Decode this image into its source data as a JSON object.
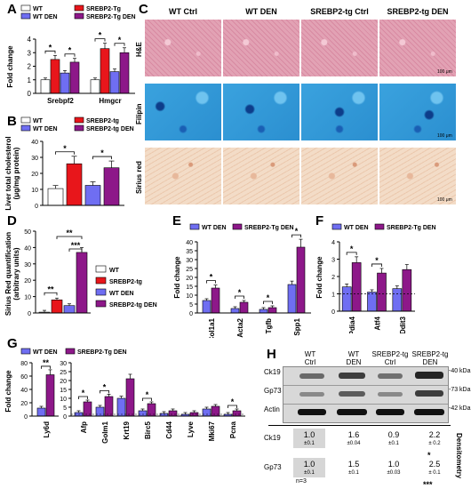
{
  "panel_letters": [
    "A",
    "B",
    "C",
    "D",
    "E",
    "F",
    "G",
    "H"
  ],
  "colors": {
    "wt": "#ffffff",
    "srebp2tg": "#e8161b",
    "wtden": "#6f6ef2",
    "tgden": "#8d1889",
    "he": "#e2a2b4",
    "filipin": "#2b8fd0",
    "sirius": "#f3dcc7"
  },
  "chart_data": [
    {
      "id": "A",
      "type": "bar",
      "legend": [
        "WT",
        "SREBP2-Tg",
        "WT DEN",
        "SREBP2-Tg DEN"
      ],
      "categories": [
        "Srebpf2",
        "Hmgcr"
      ],
      "series": [
        {
          "name": "WT",
          "values": [
            1.0,
            1.0
          ]
        },
        {
          "name": "SREBP2-Tg",
          "values": [
            2.5,
            3.3
          ]
        },
        {
          "name": "WT DEN",
          "values": [
            1.5,
            1.6
          ]
        },
        {
          "name": "SREBP2-Tg DEN",
          "values": [
            2.3,
            3.0
          ]
        }
      ],
      "ylabel": "Fold change",
      "yticks": [
        0,
        1,
        2,
        3,
        4
      ],
      "ylim": [
        0,
        4
      ],
      "annotations": [
        "*",
        "*",
        "*",
        "*"
      ]
    },
    {
      "id": "B",
      "type": "bar",
      "legend": [
        "WT",
        "SREBP2-tg",
        "WT DEN",
        "SREBP2-tg DEN"
      ],
      "categories": [
        ""
      ],
      "series": [
        {
          "name": "WT",
          "values": [
            10.5
          ]
        },
        {
          "name": "SREBP2-tg",
          "values": [
            26
          ]
        },
        {
          "name": "WT DEN",
          "values": [
            12.5
          ]
        },
        {
          "name": "SREBP2-tg DEN",
          "values": [
            23.5
          ]
        }
      ],
      "ylabel_lines": [
        "Liver total cholesterol",
        "(μg/mg protein)"
      ],
      "yticks": [
        0,
        10,
        20,
        30,
        40
      ],
      "ylim": [
        0,
        40
      ],
      "annotations": [
        "*",
        "*"
      ]
    },
    {
      "id": "D",
      "type": "bar",
      "legend": [
        "WT",
        "SREBP2-tg",
        "WT DEN",
        "SREBP2-tg DEN"
      ],
      "categories": [
        ""
      ],
      "series": [
        {
          "name": "WT",
          "values": [
            0.5
          ]
        },
        {
          "name": "SREBP2-tg",
          "values": [
            8
          ]
        },
        {
          "name": "WT DEN",
          "values": [
            4.5
          ]
        },
        {
          "name": "SREBP2-tg DEN",
          "values": [
            37
          ]
        }
      ],
      "ylabel_lines": [
        "Sirius Red quantification",
        "(arbitrary units)"
      ],
      "yticks": [
        0,
        10,
        20,
        30,
        40,
        50
      ],
      "ylim": [
        0,
        50
      ],
      "annotations": [
        "**",
        "**",
        "***"
      ]
    },
    {
      "id": "E",
      "type": "bar",
      "legend": [
        "WT DEN",
        "SREBP2-Tg DEN"
      ],
      "categories": [
        "Col1a1",
        "Acta2",
        "Tgfb",
        "Spp1"
      ],
      "series": [
        {
          "name": "WT DEN",
          "values": [
            7,
            2.5,
            2,
            16
          ]
        },
        {
          "name": "SREBP2-Tg DEN",
          "values": [
            14,
            6,
            3,
            37
          ]
        }
      ],
      "ylabel": "Fold change",
      "yticks": [
        0,
        5,
        10,
        15,
        20,
        25,
        30,
        35,
        40
      ],
      "ylim": [
        0,
        40
      ],
      "annotations": [
        "*",
        "*",
        "*",
        "*"
      ]
    },
    {
      "id": "F",
      "type": "bar",
      "legend": [
        "WT DEN",
        "SREBP2-Tg DEN"
      ],
      "categories": [
        "Pdia4",
        "Atf4",
        "Ddit3"
      ],
      "series": [
        {
          "name": "WT DEN",
          "values": [
            1.4,
            1.1,
            1.3
          ]
        },
        {
          "name": "SREBP2-Tg DEN",
          "values": [
            2.8,
            2.2,
            2.4
          ]
        }
      ],
      "ylabel": "Fold change",
      "yticks": [
        0,
        1,
        2,
        3,
        4
      ],
      "ylim": [
        0,
        4
      ],
      "annotations": [
        "*",
        "*"
      ]
    },
    {
      "id": "G",
      "type": "bar",
      "legend": [
        "WT DEN",
        "SREBP2-Tg DEN"
      ],
      "categories": [
        "Ly6d",
        "Afp",
        "Golm1",
        "Krt19",
        "Birc5",
        "Cd44",
        "Lyve",
        "Mki67",
        "Pcna"
      ],
      "series": [
        {
          "name": "WT DEN",
          "values": [
            12,
            2,
            5,
            10,
            3,
            1.5,
            1,
            4,
            1
          ]
        },
        {
          "name": "SREBP2-Tg DEN",
          "values": [
            62,
            8,
            11,
            21,
            7,
            3,
            2,
            5.5,
            3
          ]
        }
      ],
      "ylabel": "Fold change",
      "yticks_left": [
        0,
        20,
        40,
        60,
        80
      ],
      "ylim_left": [
        0,
        80
      ],
      "yticks_right": [
        0,
        5,
        10,
        15,
        20,
        25,
        30
      ],
      "ylim_right": [
        0,
        30
      ],
      "annotations": [
        "**",
        "*",
        "*",
        "*",
        "*"
      ]
    },
    {
      "id": "H",
      "type": "table",
      "columns": [
        "WT\nCtrl",
        "WT\nDEN",
        "SREBP2-tg\nCtrl",
        "SREBP2-tg\nDEN"
      ],
      "blot_rows": [
        "Ck19",
        "Gp73",
        "Actin"
      ],
      "kda": [
        "-40 kDa",
        "-73 kDa",
        "-42 kDa"
      ],
      "rows": [
        {
          "label": "Ck19",
          "values": [
            "1.0",
            "1.6",
            "0.9",
            "2.2"
          ],
          "errors": [
            "±0.1",
            "±0.04",
            "±0.1",
            "± 0.2"
          ],
          "sig": "*"
        },
        {
          "label": "Gp73",
          "values": [
            "1.0",
            "1.5",
            "1.0",
            "2.5"
          ],
          "errors": [
            "±0.1",
            "±0.1",
            "±0.03",
            "± 0.1"
          ],
          "sig": "***"
        }
      ],
      "n": "n=3",
      "side_label": "Densitometry"
    }
  ],
  "micrographs": {
    "column_titles": [
      "WT Ctrl",
      "WT DEN",
      "SREBP2-tg Ctrl",
      "SREBP2-tg DEN"
    ],
    "row_labels": [
      "H&E",
      "Filipin",
      "Sirius red"
    ],
    "scale": "100 μm"
  }
}
